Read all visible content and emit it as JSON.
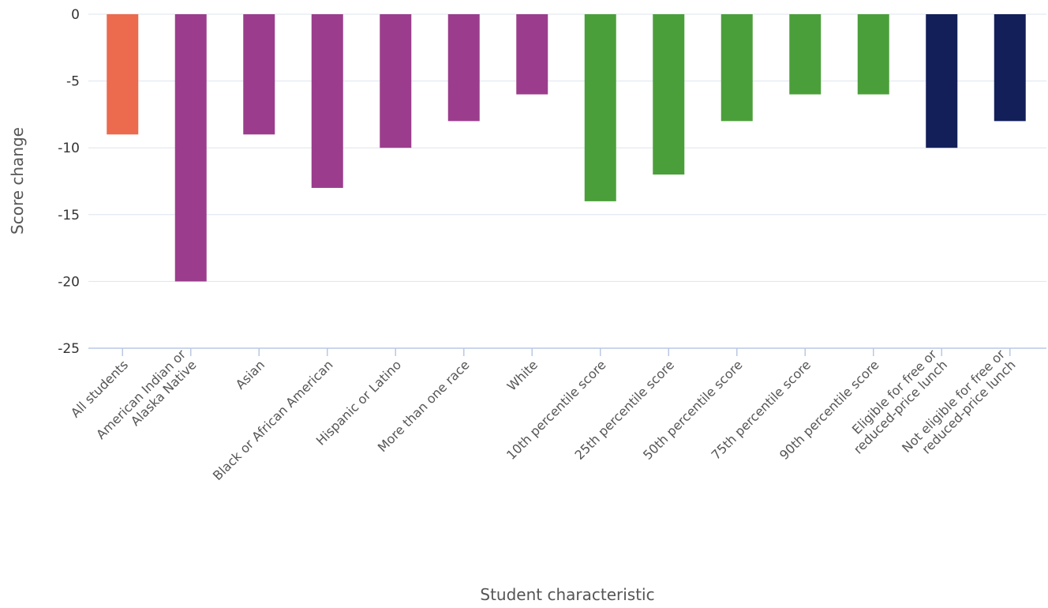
{
  "chart_data": {
    "type": "bar",
    "xlabel": "Student characteristic",
    "ylabel": "Score change",
    "ylim": [
      -25,
      0
    ],
    "yticks": [
      0,
      -5,
      -10,
      -15,
      -20,
      -25
    ],
    "grid": true,
    "categories": [
      [
        "All students"
      ],
      [
        "American Indian or",
        "Alaska Native"
      ],
      [
        "Asian"
      ],
      [
        "Black or African American"
      ],
      [
        "Hispanic or Latino"
      ],
      [
        "More than one race"
      ],
      [
        "White"
      ],
      [
        "10th percentile score"
      ],
      [
        "25th percentile score"
      ],
      [
        "50th percentile score"
      ],
      [
        "75th percentile score"
      ],
      [
        "90th percentile score"
      ],
      [
        "Eligible for free or",
        "reduced-price lunch"
      ],
      [
        "Not eligible for free or",
        "reduced-price lunch"
      ]
    ],
    "values": [
      -9,
      -20,
      -9,
      -13,
      -10,
      -8,
      -6,
      -14,
      -12,
      -8,
      -6,
      -6,
      -10,
      -8
    ],
    "colors": [
      "#ec6a4e",
      "#9b3d8c",
      "#9b3d8c",
      "#9b3d8c",
      "#9b3d8c",
      "#9b3d8c",
      "#9b3d8c",
      "#4b9f3a",
      "#4b9f3a",
      "#4b9f3a",
      "#4b9f3a",
      "#4b9f3a",
      "#121f58",
      "#121f58"
    ],
    "gridline_color": "#dde4ee",
    "baseline_color": "#b8c8e6"
  }
}
